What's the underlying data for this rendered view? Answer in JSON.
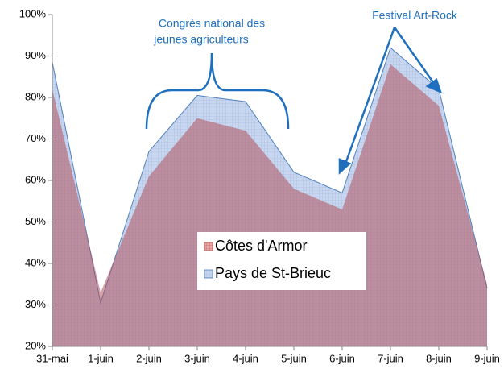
{
  "chart_data": {
    "type": "area",
    "categories": [
      "31-mai",
      "1-juin",
      "2-juin",
      "3-juin",
      "4-juin",
      "5-juin",
      "6-juin",
      "7-juin",
      "8-juin",
      "9-juin"
    ],
    "series": [
      {
        "name": "Côtes d'Armor",
        "color": "#c0504d",
        "values": [
          82,
          33,
          61,
          75,
          72,
          58,
          53,
          88,
          78,
          35
        ]
      },
      {
        "name": "Pays de St-Brieuc",
        "color": "#4f81bd",
        "values": [
          88.5,
          30.5,
          67,
          80.5,
          79,
          62,
          57,
          92,
          82,
          34
        ]
      }
    ],
    "ylim": [
      20,
      100
    ],
    "yticks": [
      {
        "value": 20,
        "label": "20%"
      },
      {
        "value": 30,
        "label": "30%"
      },
      {
        "value": 40,
        "label": "40%"
      },
      {
        "value": 50,
        "label": "50%"
      },
      {
        "value": 60,
        "label": "60%"
      },
      {
        "value": 70,
        "label": "70%"
      },
      {
        "value": 80,
        "label": "80%"
      },
      {
        "value": 90,
        "label": "90%"
      },
      {
        "value": 100,
        "label": "100%"
      }
    ],
    "annotations": [
      "Congrès national des",
      "jeunes agriculteurs",
      "Festival Art-Rock"
    ]
  }
}
